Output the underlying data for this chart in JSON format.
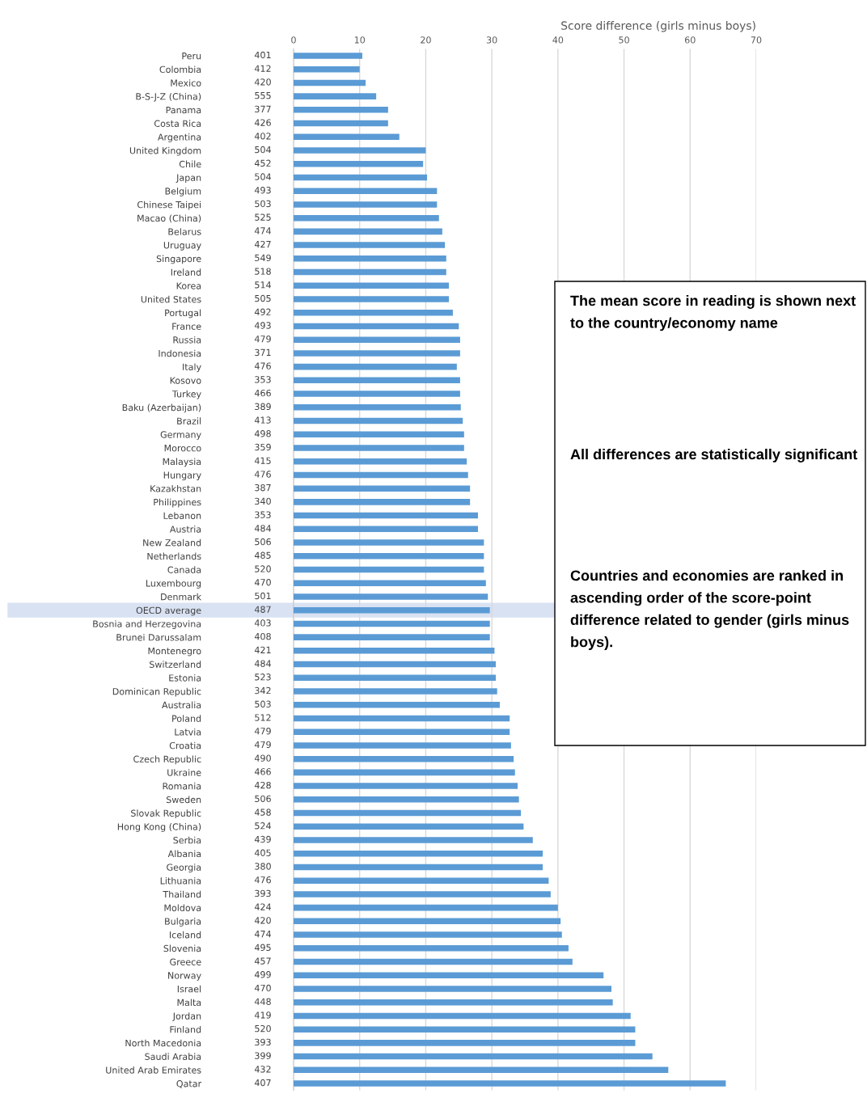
{
  "chart_data": {
    "type": "bar",
    "orientation": "horizontal",
    "x2label": "Score difference (girls minus boys)",
    "categories": [
      "Peru",
      "Colombia",
      "Mexico",
      "B-S-J-Z (China)",
      "Panama",
      "Costa Rica",
      "Argentina",
      "United Kingdom",
      "Chile",
      "Japan",
      "Belgium",
      "Chinese Taipei",
      "Macao (China)",
      "Belarus",
      "Uruguay",
      "Singapore",
      "Ireland",
      "Korea",
      "United States",
      "Portugal",
      "France",
      "Russia",
      "Indonesia",
      "Italy",
      "Kosovo",
      "Turkey",
      "Baku (Azerbaijan)",
      "Brazil",
      "Germany",
      "Morocco",
      "Malaysia",
      "Hungary",
      "Kazakhstan",
      "Philippines",
      "Lebanon",
      "Austria",
      "New Zealand",
      "Netherlands",
      "Canada",
      "Luxembourg",
      "Denmark",
      "OECD average",
      "Bosnia and Herzegovina",
      "Brunei Darussalam",
      "Montenegro",
      "Switzerland",
      "Estonia",
      "Dominican Republic",
      "Australia",
      "Poland",
      "Latvia",
      "Croatia",
      "Czech Republic",
      "Ukraine",
      "Romania",
      "Sweden",
      "Slovak Republic",
      "Hong Kong (China)",
      "Serbia",
      "Albania",
      "Georgia",
      "Lithuania",
      "Thailand",
      "Moldova",
      "Bulgaria",
      "Iceland",
      "Slovenia",
      "Greece",
      "Norway",
      "Israel",
      "Malta",
      "Jordan",
      "Finland",
      "North Macedonia",
      "Saudi Arabia",
      "United Arab Emirates",
      "Qatar"
    ],
    "series": [
      {
        "axis": "x2",
        "color": "#5b9bd5",
        "values": [
          10.4,
          10.0,
          10.9,
          12.5,
          14.3,
          14.3,
          16.0,
          20.0,
          19.6,
          20.2,
          21.7,
          21.7,
          22.0,
          22.5,
          22.9,
          23.1,
          23.1,
          23.5,
          23.5,
          24.1,
          25.0,
          25.2,
          25.2,
          24.7,
          25.2,
          25.2,
          25.3,
          25.6,
          25.8,
          25.8,
          26.2,
          26.4,
          26.7,
          26.7,
          27.9,
          27.9,
          28.8,
          28.8,
          28.8,
          29.1,
          29.4,
          29.7,
          29.7,
          29.7,
          30.4,
          30.6,
          30.6,
          30.8,
          31.2,
          32.7,
          32.7,
          32.9,
          33.3,
          33.5,
          33.9,
          34.1,
          34.4,
          34.8,
          36.2,
          37.7,
          37.7,
          38.6,
          38.9,
          40.0,
          40.4,
          40.6,
          41.6,
          42.2,
          46.9,
          48.1,
          48.3,
          51.0,
          51.7,
          51.7,
          54.3,
          56.7,
          65.4
        ]
      }
    ],
    "x2lim": [
      0,
      70
    ],
    "x2ticks": [
      0,
      10,
      20,
      30,
      40,
      50,
      60,
      70
    ],
    "grid": "x",
    "bands": [
      {
        "axis": "y",
        "from": "OECD average",
        "to": "OECD average",
        "color": "#d9e2f3"
      }
    ],
    "annotations": [
      "401",
      "412",
      "420",
      "555",
      "377",
      "426",
      "402",
      "504",
      "452",
      "504",
      "493",
      "503",
      "525",
      "474",
      "427",
      "549",
      "518",
      "514",
      "505",
      "492",
      "493",
      "479",
      "371",
      "476",
      "353",
      "466",
      "389",
      "413",
      "498",
      "359",
      "415",
      "476",
      "387",
      "340",
      "353",
      "484",
      "506",
      "485",
      "520",
      "470",
      "501",
      "487",
      "403",
      "408",
      "421",
      "484",
      "523",
      "342",
      "503",
      "512",
      "479",
      "479",
      "490",
      "466",
      "428",
      "506",
      "458",
      "524",
      "439",
      "405",
      "380",
      "476",
      "393",
      "424",
      "420",
      "474",
      "495",
      "457",
      "499",
      "470",
      "448",
      "419",
      "520",
      "393",
      "399",
      "432",
      "407",
      "The mean score in reading is shown next to the country/economy name",
      "All differences are statistically significant",
      "Countries and economies are ranked in ascending order of the score-point difference related to gender (girls minus boys)."
    ]
  }
}
